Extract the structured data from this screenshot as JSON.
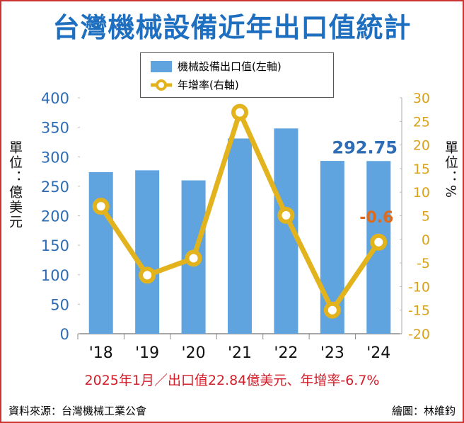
{
  "chart_data": {
    "type": "bar+line",
    "title": "台灣機械設備近年出口值統計",
    "categories": [
      "'18",
      "'19",
      "'20",
      "'21",
      "'22",
      "'23",
      "'24"
    ],
    "series": [
      {
        "name": "機械設備出口值(左軸)",
        "type": "bar",
        "axis": "left",
        "color": "#5fa3df",
        "values": [
          274,
          277,
          260,
          331,
          348,
          293,
          292.75
        ]
      },
      {
        "name": "年增率(右軸)",
        "type": "line",
        "axis": "right",
        "color": "#e2b31c",
        "values": [
          7,
          -7.6,
          -4,
          26.9,
          5.1,
          -15,
          -0.6
        ]
      }
    ],
    "left_axis": {
      "label": "單位：億美元",
      "ylim": [
        0,
        400
      ],
      "ticks": [
        0,
        50,
        100,
        150,
        200,
        250,
        300,
        350,
        400
      ],
      "color": "#2e6db5"
    },
    "right_axis": {
      "label": "單位：%",
      "ylim": [
        -20,
        30
      ],
      "ticks": [
        -20,
        -15,
        -10,
        -5,
        0,
        5,
        10,
        15,
        20,
        25,
        30
      ],
      "color": "#d9a21a"
    },
    "annotations": {
      "bar_last": "292.75",
      "line_last": "-0.6"
    },
    "legend_position": "top-center",
    "grid": false
  },
  "note": "2025年1月／出口值22.84億美元、年增率-6.7%",
  "source": "資料來源：台灣機械工業公會",
  "credit": "繪圖：林維鈞"
}
